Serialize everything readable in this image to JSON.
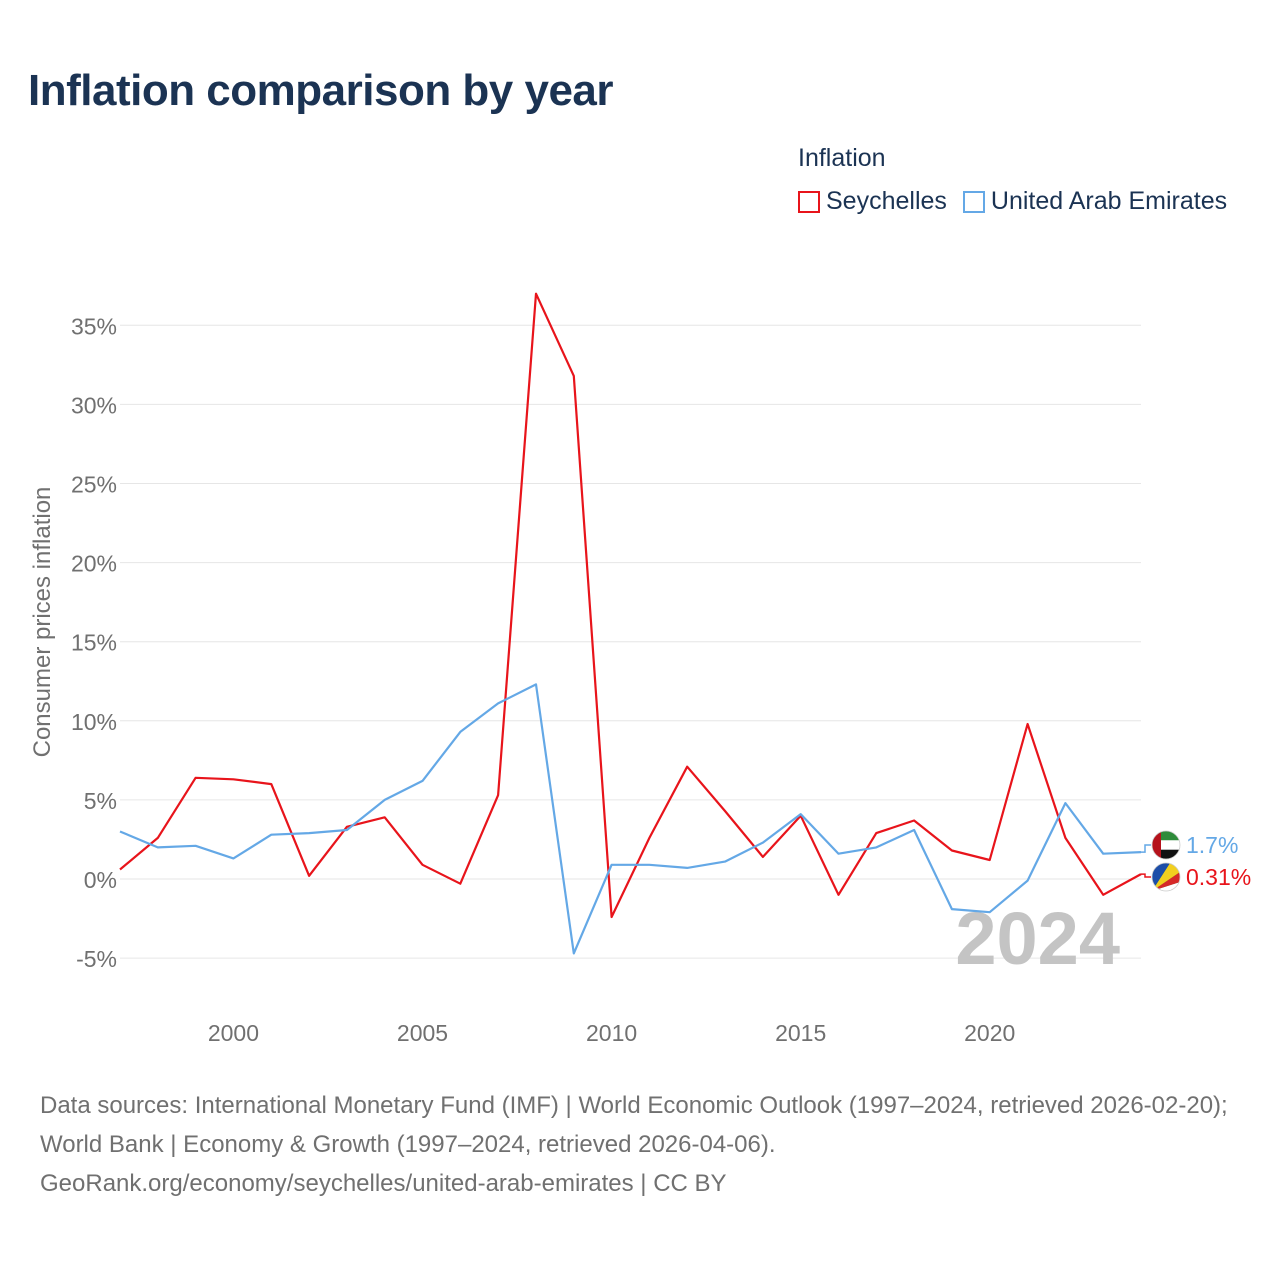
{
  "title": "Inflation comparison by year",
  "legend": {
    "title": "Inflation",
    "items": [
      {
        "label": "Seychelles",
        "color": "#e8141b"
      },
      {
        "label": "United Arab Emirates",
        "color": "#64a8e6"
      }
    ]
  },
  "sources": {
    "line1": "Data sources: International Monetary Fund (IMF) | World Economic Outlook (1997–2024, retrieved 2026-02-20); World Bank | Economy & Growth (1997–2024, retrieved 2026-04-06).",
    "line2": "GeoRank.org/economy/seychelles/united-arab-emirates | CC BY"
  },
  "chart_data": {
    "type": "line",
    "title": "Inflation comparison by year",
    "xlabel": "",
    "ylabel": "Consumer prices inflation",
    "ylim": [
      -6,
      37
    ],
    "xlim": [
      1997,
      2024
    ],
    "yticks": [
      -5,
      0,
      5,
      10,
      15,
      20,
      25,
      30,
      35
    ],
    "ytick_labels": [
      "-5%",
      "0%",
      "5%",
      "10%",
      "15%",
      "20%",
      "25%",
      "30%",
      "35%"
    ],
    "xticks": [
      2000,
      2005,
      2010,
      2015,
      2020
    ],
    "xtick_labels": [
      "2000",
      "2005",
      "2010",
      "2015",
      "2020"
    ],
    "grid": true,
    "year_watermark": "2024",
    "x": [
      1997,
      1998,
      1999,
      2000,
      2001,
      2002,
      2003,
      2004,
      2005,
      2006,
      2007,
      2008,
      2009,
      2010,
      2011,
      2012,
      2013,
      2014,
      2015,
      2016,
      2017,
      2018,
      2019,
      2020,
      2021,
      2022,
      2023,
      2024
    ],
    "series": [
      {
        "name": "Seychelles",
        "color": "#e8141b",
        "values": [
          0.6,
          2.6,
          6.4,
          6.3,
          6.0,
          0.2,
          3.3,
          3.9,
          0.9,
          -0.3,
          5.3,
          37.0,
          31.8,
          -2.4,
          2.6,
          7.1,
          4.3,
          1.4,
          4.0,
          -1.0,
          2.9,
          3.7,
          1.8,
          1.2,
          9.8,
          2.6,
          -1.0,
          0.31
        ],
        "end_label": "0.31%"
      },
      {
        "name": "United Arab Emirates",
        "color": "#64a8e6",
        "values": [
          3.0,
          2.0,
          2.1,
          1.3,
          2.8,
          2.9,
          3.1,
          5.0,
          6.2,
          9.3,
          11.1,
          12.3,
          -4.7,
          0.9,
          0.9,
          0.7,
          1.1,
          2.3,
          4.1,
          1.6,
          2.0,
          3.1,
          -1.9,
          -2.1,
          -0.1,
          4.8,
          1.6,
          1.7
        ],
        "end_label": "1.7%"
      }
    ]
  }
}
